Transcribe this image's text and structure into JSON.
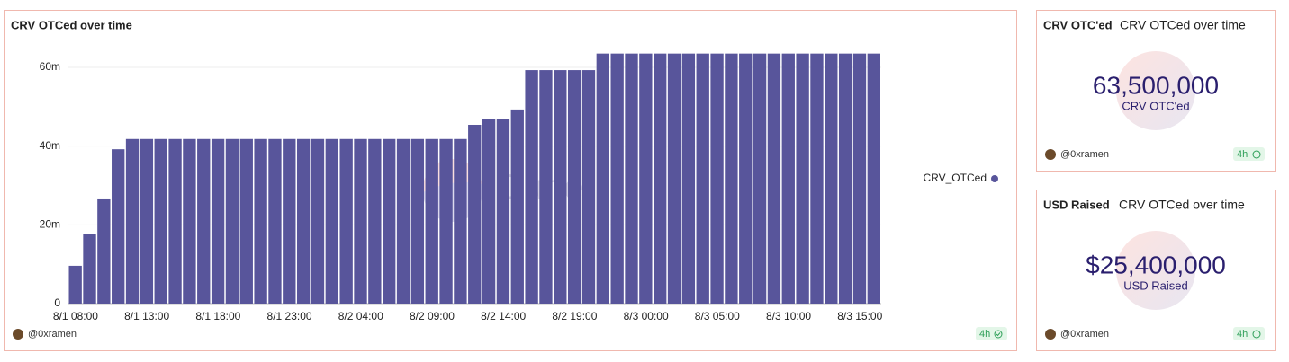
{
  "chart_data": {
    "type": "bar",
    "title": "CRV OTCed over time",
    "categories": [
      "8/1 08:00",
      null,
      null,
      null,
      null,
      "8/1 13:00",
      null,
      null,
      null,
      null,
      "8/1 18:00",
      null,
      null,
      null,
      null,
      "8/1 23:00",
      null,
      null,
      null,
      null,
      "8/2 04:00",
      null,
      null,
      null,
      null,
      "8/2 09:00",
      null,
      null,
      null,
      null,
      "8/2 14:00",
      null,
      null,
      null,
      null,
      "8/2 19:00",
      null,
      null,
      null,
      null,
      "8/3 00:00",
      null,
      null,
      null,
      null,
      "8/3 05:00",
      null,
      null,
      null,
      null,
      "8/3 10:00",
      null,
      null,
      null,
      null,
      "8/3 15:00",
      null
    ],
    "series": [
      {
        "name": "CRV_OTCed",
        "color": "#58559b",
        "values": [
          9600000,
          17600000,
          26700000,
          39200000,
          41800000,
          41800000,
          41800000,
          41800000,
          41800000,
          41800000,
          41800000,
          41800000,
          41800000,
          41800000,
          41800000,
          41800000,
          41800000,
          41800000,
          41800000,
          41800000,
          41800000,
          41800000,
          41800000,
          41800000,
          41800000,
          41800000,
          41800000,
          41800000,
          45400000,
          46800000,
          46800000,
          49300000,
          59300000,
          59300000,
          59300000,
          59300000,
          59300000,
          63500000,
          63500000,
          63500000,
          63500000,
          63500000,
          63500000,
          63500000,
          63500000,
          63500000,
          63500000,
          63500000,
          63500000,
          63500000,
          63500000,
          63500000,
          63500000,
          63500000,
          63500000,
          63500000,
          63500000
        ]
      }
    ],
    "ylim": [
      0,
      64000000
    ],
    "yticks": [
      0,
      {
        "value": 20000000,
        "label": "20m"
      },
      {
        "value": 40000000,
        "label": "40m"
      },
      {
        "value": 60000000,
        "label": "60m"
      }
    ],
    "grid": true,
    "legend": "right",
    "watermark": "Dune",
    "author": "@0xramen",
    "refresh": "4h"
  },
  "counters": [
    {
      "title": "CRV OTC'ed",
      "subtitle": "CRV OTCed over time",
      "value": "63,500,000",
      "label": "CRV OTC'ed",
      "author": "@0xramen",
      "refresh": "4h"
    },
    {
      "title": "USD Raised",
      "subtitle": "CRV OTCed over time",
      "value": "$25,400,000",
      "label": "USD Raised",
      "author": "@0xramen",
      "refresh": "4h"
    }
  ]
}
